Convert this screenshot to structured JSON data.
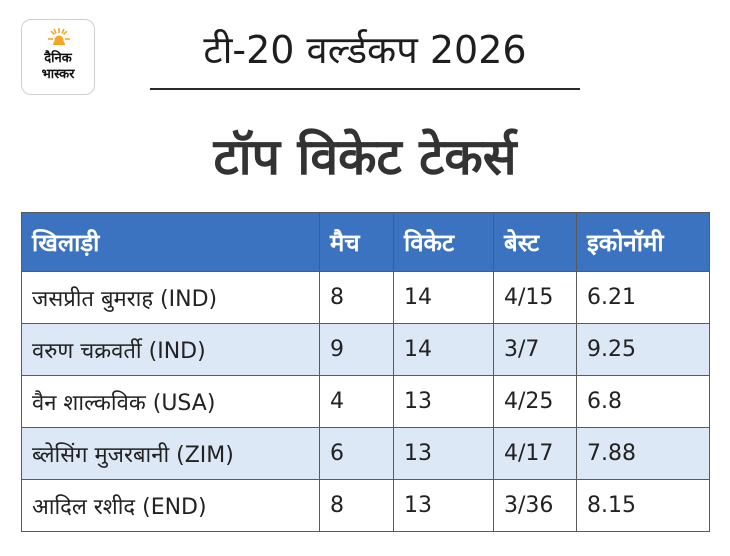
{
  "logo": {
    "line1": "दैनिक",
    "line2": "भास्कर",
    "icon": "sun-icon",
    "sun_color": "#f5a623"
  },
  "header": {
    "title": "टी-20 वर्ल्डकप 2026",
    "subtitle": "टॉप विकेट टेकर्स"
  },
  "table": {
    "header_color": "#3c73c1",
    "stripe_color": "#dde8f6",
    "columns": [
      "खिलाड़ी",
      "मैच",
      "विकेट",
      "बेस्ट",
      "इकोनॉमी"
    ],
    "rows": [
      [
        "जसप्रीत बुमराह (IND)",
        "8",
        "14",
        "4/15",
        "6.21"
      ],
      [
        "वरुण चक्रवर्ती (IND)",
        "9",
        "14",
        "3/7",
        "9.25"
      ],
      [
        "वैन शाल्कविक (USA)",
        "4",
        "13",
        "4/25",
        "6.8"
      ],
      [
        "ब्लेसिंग मुजरबानी (ZIM)",
        "6",
        "13",
        "4/17",
        "7.88"
      ],
      [
        "आदिल रशीद (END)",
        "8",
        "13",
        "3/36",
        "8.15"
      ]
    ]
  }
}
